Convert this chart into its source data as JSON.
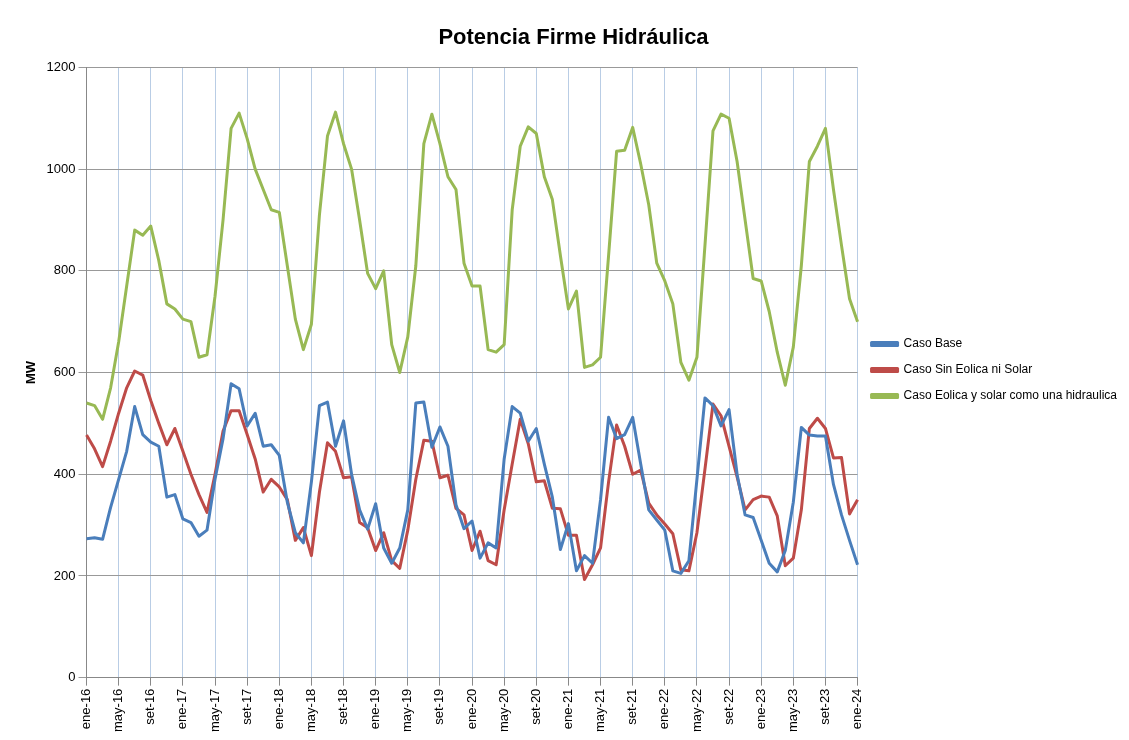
{
  "chart_data": {
    "type": "line",
    "title": "Potencia Firme Hidráulica",
    "ylabel": "MW",
    "categories": [
      "ene-16",
      null,
      null,
      null,
      "may-16",
      null,
      null,
      null,
      "set-16",
      null,
      null,
      null,
      "ene-17",
      null,
      null,
      null,
      "may-17",
      null,
      null,
      null,
      "set-17",
      null,
      null,
      null,
      "ene-18",
      null,
      null,
      null,
      "may-18",
      null,
      null,
      null,
      "set-18",
      null,
      null,
      null,
      "ene-19",
      null,
      null,
      null,
      "may-19",
      null,
      null,
      null,
      "set-19",
      null,
      null,
      null,
      "ene-20",
      null,
      null,
      null,
      "may-20",
      null,
      null,
      null,
      "set-20",
      null,
      null,
      null,
      "ene-21",
      null,
      null,
      null,
      "may-21",
      null,
      null,
      null,
      "set-21",
      null,
      null,
      null,
      "ene-22",
      null,
      null,
      null,
      "may-22",
      null,
      null,
      null,
      "set-22",
      null,
      null,
      null,
      "ene-23",
      null,
      null,
      null,
      "may-23",
      null,
      null,
      null,
      "set-23",
      null,
      null,
      null,
      "ene-24"
    ],
    "series": [
      {
        "name": "Caso Base",
        "color": "#4a7ebb",
        "values": [
          273,
          275,
          272,
          335,
          390,
          445,
          533,
          478,
          463,
          455,
          355,
          360,
          312,
          305,
          278,
          290,
          390,
          470,
          578,
          568,
          495,
          520,
          455,
          458,
          437,
          345,
          285,
          265,
          385,
          535,
          542,
          455,
          505,
          400,
          330,
          292,
          342,
          255,
          225,
          255,
          330,
          540,
          542,
          453,
          493,
          455,
          340,
          293,
          308,
          235,
          265,
          255,
          430,
          533,
          520,
          465,
          490,
          420,
          355,
          252,
          303,
          210,
          240,
          225,
          350,
          512,
          470,
          478,
          512,
          420,
          330,
          310,
          290,
          210,
          205,
          230,
          390,
          550,
          535,
          495,
          527,
          400,
          320,
          315,
          270,
          225,
          208,
          250,
          345,
          492,
          477,
          475,
          475,
          380,
          320,
          270,
          222
        ]
      },
      {
        "name": "Caso Sin Eolica ni Solar",
        "color": "#be4b48",
        "values": [
          477,
          450,
          415,
          465,
          520,
          570,
          603,
          595,
          545,
          500,
          458,
          490,
          445,
          400,
          360,
          325,
          400,
          485,
          525,
          525,
          478,
          430,
          365,
          390,
          375,
          350,
          270,
          295,
          240,
          365,
          462,
          445,
          393,
          395,
          305,
          295,
          250,
          285,
          230,
          215,
          290,
          390,
          467,
          465,
          393,
          398,
          333,
          320,
          250,
          288,
          230,
          222,
          330,
          420,
          508,
          460,
          385,
          387,
          333,
          332,
          280,
          280,
          193,
          222,
          255,
          385,
          497,
          455,
          400,
          408,
          343,
          320,
          302,
          283,
          212,
          210,
          285,
          410,
          538,
          515,
          455,
          395,
          330,
          350,
          357,
          355,
          318,
          220,
          235,
          330,
          490,
          510,
          490,
          432,
          433,
          322,
          350
        ]
      },
      {
        "name": "Caso Eolica y solar como una hidraulica",
        "color": "#98b954",
        "values": [
          540,
          535,
          508,
          570,
          660,
          770,
          880,
          870,
          888,
          820,
          735,
          725,
          705,
          700,
          630,
          635,
          750,
          900,
          1080,
          1110,
          1060,
          1000,
          960,
          920,
          915,
          810,
          705,
          645,
          695,
          910,
          1065,
          1112,
          1050,
          1000,
          900,
          795,
          765,
          800,
          655,
          600,
          670,
          810,
          1050,
          1108,
          1050,
          985,
          960,
          815,
          770,
          770,
          645,
          640,
          655,
          920,
          1045,
          1083,
          1070,
          985,
          940,
          830,
          725,
          760,
          610,
          615,
          630,
          830,
          1035,
          1037,
          1082,
          1010,
          930,
          815,
          780,
          735,
          620,
          585,
          630,
          850,
          1075,
          1108,
          1100,
          1015,
          900,
          785,
          780,
          720,
          640,
          575,
          650,
          810,
          1015,
          1045,
          1080,
          960,
          850,
          745,
          700
        ]
      }
    ],
    "ylim": [
      0,
      1200
    ],
    "yticks": [
      0,
      200,
      400,
      600,
      800,
      1000,
      1200
    ],
    "grid": true,
    "legend": "right",
    "marker": "none",
    "line_style": "solid"
  }
}
